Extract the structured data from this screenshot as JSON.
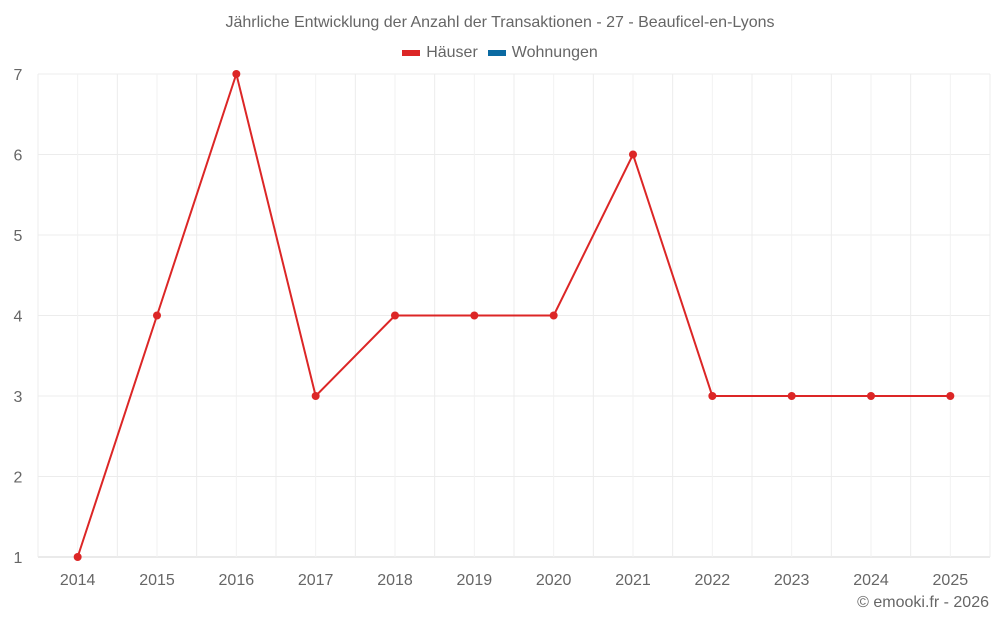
{
  "header": {
    "title": "Jährliche Entwicklung der Anzahl der Transaktionen - 27 - Beauficel-en-Lyons"
  },
  "legend": [
    {
      "label": "Häuser",
      "color": "#dc2626"
    },
    {
      "label": "Wohnungen",
      "color": "#0b6aa2"
    }
  ],
  "credit": "© emooki.fr - 2026",
  "chart_data": {
    "type": "line",
    "title": "Jährliche Entwicklung der Anzahl der Transaktionen - 27 - Beauficel-en-Lyons",
    "xlabel": "",
    "ylabel": "",
    "categories": [
      "2014",
      "2015",
      "2016",
      "2017",
      "2018",
      "2019",
      "2020",
      "2021",
      "2022",
      "2023",
      "2024",
      "2025"
    ],
    "series": [
      {
        "name": "Häuser",
        "color": "#dc2626",
        "values": [
          1,
          4,
          7,
          3,
          4,
          4,
          4,
          6,
          3,
          3,
          3,
          3
        ]
      },
      {
        "name": "Wohnungen",
        "color": "#0b6aa2",
        "values": []
      }
    ],
    "ylim": [
      1,
      7
    ],
    "yticks": [
      1,
      2,
      3,
      4,
      5,
      6,
      7
    ],
    "grid": true,
    "legend_position": "top"
  }
}
